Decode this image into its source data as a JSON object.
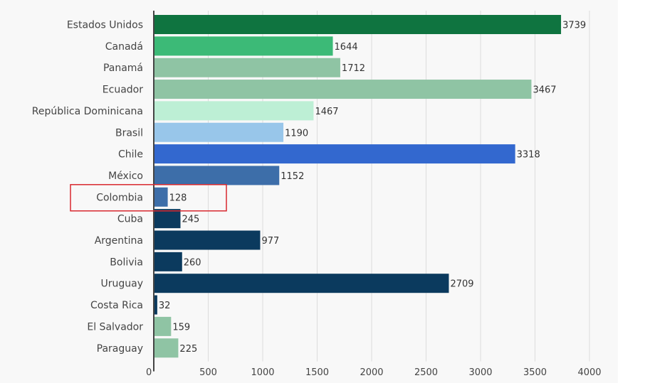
{
  "chart_data": {
    "type": "bar",
    "orientation": "horizontal",
    "title": "",
    "xlabel": "",
    "ylabel": "",
    "xlim": [
      0,
      4000
    ],
    "grid": true,
    "xticks": [
      "0",
      "500",
      "1000",
      "1500",
      "2000",
      "2500",
      "3000",
      "3500",
      "4000"
    ],
    "tick_values": [
      0,
      500,
      1000,
      1500,
      2000,
      2500,
      3000,
      3500,
      4000
    ],
    "categories": [
      "Estados Unidos",
      "Canadá",
      "Panamá",
      "Ecuador",
      "República Dominicana",
      "Brasil",
      "Chile",
      "México",
      "Colombia",
      "Cuba",
      "Argentina",
      "Bolivia",
      "Uruguay",
      "Costa Rica",
      "El Salvador",
      "Paraguay"
    ],
    "values": [
      3739,
      1644,
      1712,
      3467,
      1467,
      1190,
      3318,
      1152,
      128,
      245,
      977,
      260,
      2709,
      32,
      159,
      225
    ],
    "value_labels": [
      "3739",
      "1644",
      "1712",
      "3467",
      "1467",
      "1190",
      "3318",
      "1152",
      "128",
      "245",
      "977",
      "260",
      "2709",
      "32",
      "159",
      "225"
    ],
    "colors": [
      "#0f7440",
      "#3cba77",
      "#8fc4a4",
      "#8fc4a4",
      "#bdefd5",
      "#98c6ea",
      "#3368cf",
      "#3d6ea9",
      "#3d6ea9",
      "#0b3a5e",
      "#0b3a5e",
      "#0b3a5e",
      "#0b3a5e",
      "#0b3a5e",
      "#8fc4a4",
      "#8fc4a4"
    ],
    "highlighted_category": "Colombia",
    "highlight_color": "#d9282f"
  }
}
